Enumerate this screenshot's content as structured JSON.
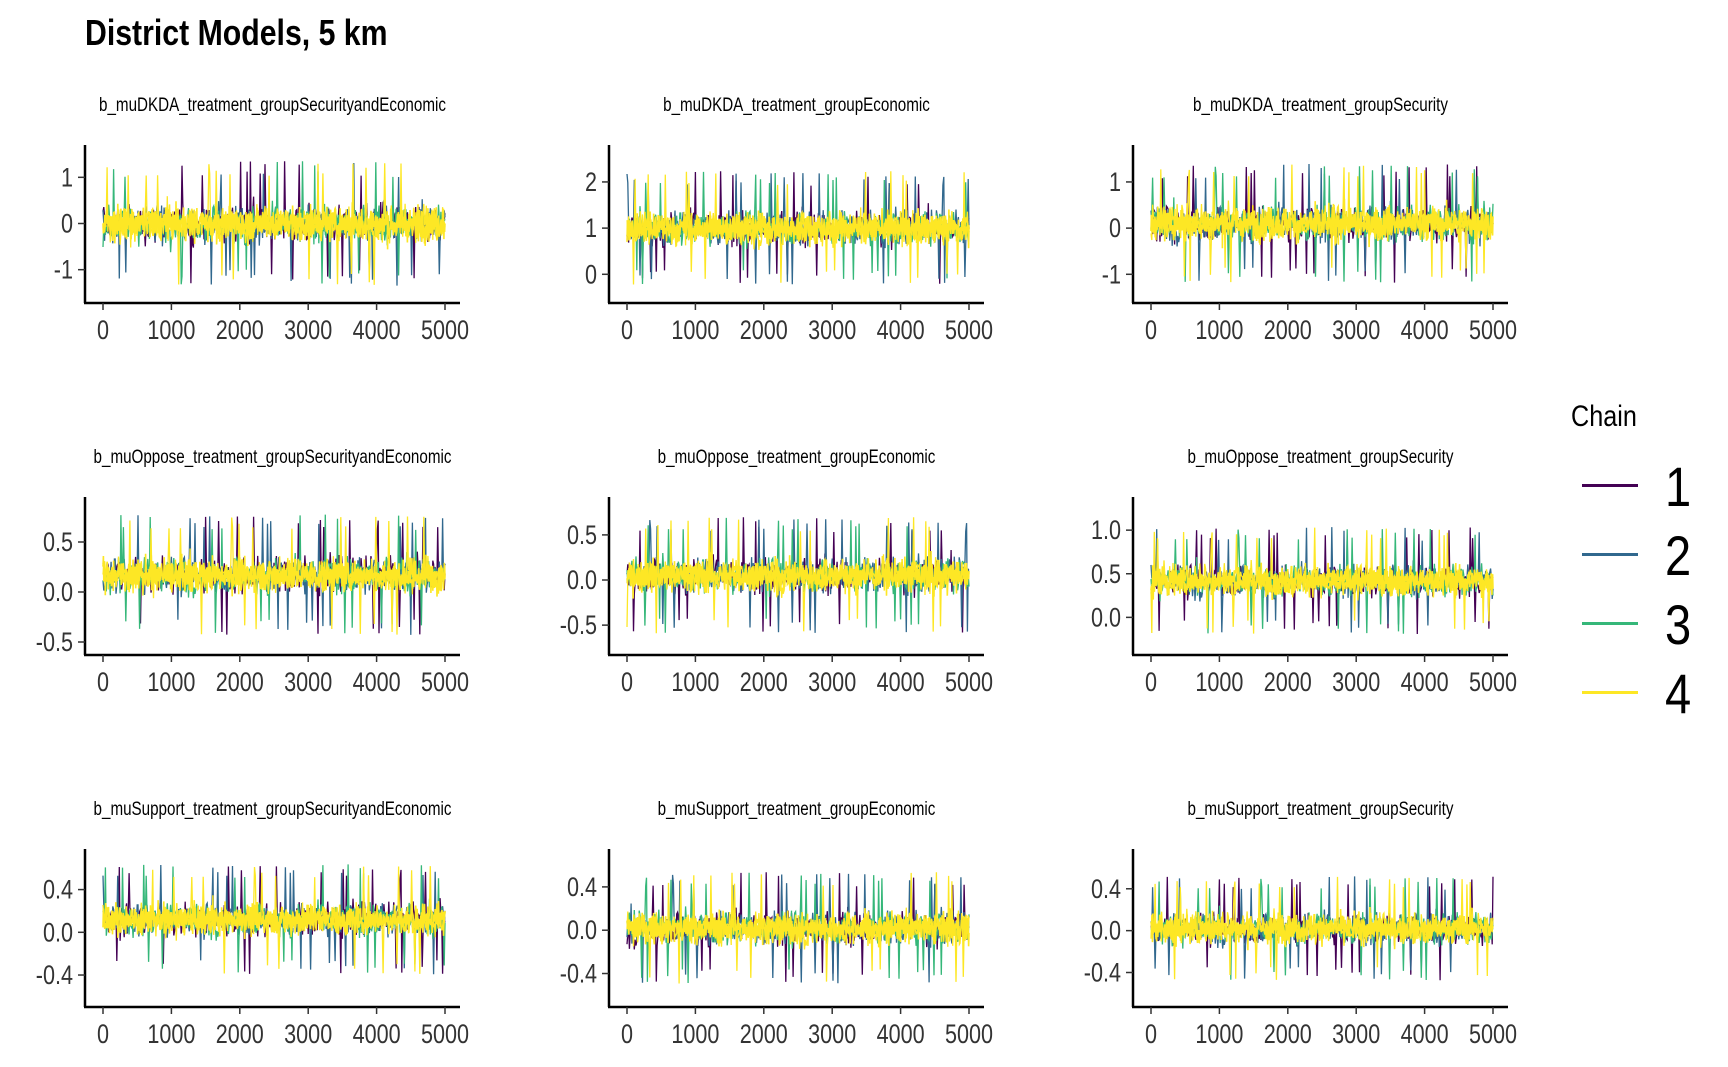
{
  "title": "District Models, 5 km",
  "legend": {
    "title": "Chain",
    "entries": [
      {
        "label": "1",
        "color": "#440154"
      },
      {
        "label": "2",
        "color": "#31688e"
      },
      {
        "label": "3",
        "color": "#35b779"
      },
      {
        "label": "4",
        "color": "#fde725"
      }
    ]
  },
  "chart_data": [
    {
      "type": "line",
      "title": "b_muDKDA_treatment_groupSecurityandEconomic",
      "xlim": [
        0,
        5000
      ],
      "xticks": [
        0,
        1000,
        2000,
        3000,
        4000,
        5000
      ],
      "ylim": [
        -1.7,
        1.7
      ],
      "yticks": [
        -1,
        0,
        1
      ],
      "ytick_labels": [
        "-1",
        "0",
        "1"
      ],
      "center": 0.0,
      "band": [
        -1.15,
        1.15
      ],
      "spike_max": 1.55,
      "spike_min": -1.65,
      "series": [
        {
          "name": "1",
          "color": "#440154"
        },
        {
          "name": "2",
          "color": "#31688e"
        },
        {
          "name": "3",
          "color": "#35b779"
        },
        {
          "name": "4",
          "color": "#fde725"
        }
      ]
    },
    {
      "type": "line",
      "title": "b_muDKDA_treatment_groupEconomic",
      "xlim": [
        0,
        5000
      ],
      "xticks": [
        0,
        1000,
        2000,
        3000,
        4000,
        5000
      ],
      "ylim": [
        -0.6,
        2.8
      ],
      "yticks": [
        0,
        1,
        2
      ],
      "ytick_labels": [
        "0",
        "1",
        "2"
      ],
      "center": 1.0,
      "band": [
        -0.05,
        2.05
      ],
      "spike_max": 2.6,
      "spike_min": -0.55,
      "series": [
        {
          "name": "1",
          "color": "#440154"
        },
        {
          "name": "2",
          "color": "#31688e"
        },
        {
          "name": "3",
          "color": "#35b779"
        },
        {
          "name": "4",
          "color": "#fde725"
        }
      ]
    },
    {
      "type": "line",
      "title": "b_muDKDA_treatment_groupSecurity",
      "xlim": [
        0,
        5000
      ],
      "xticks": [
        0,
        1000,
        2000,
        3000,
        4000,
        5000
      ],
      "ylim": [
        -1.6,
        1.8
      ],
      "yticks": [
        -1,
        0,
        1
      ],
      "ytick_labels": [
        "-1",
        "0",
        "1"
      ],
      "center": 0.1,
      "band": [
        -1.0,
        1.2
      ],
      "spike_max": 1.75,
      "spike_min": -1.45,
      "series": [
        {
          "name": "1",
          "color": "#440154"
        },
        {
          "name": "2",
          "color": "#31688e"
        },
        {
          "name": "3",
          "color": "#35b779"
        },
        {
          "name": "4",
          "color": "#fde725"
        }
      ]
    },
    {
      "type": "line",
      "title": "b_muOppose_treatment_groupSecurityandEconomic",
      "xlim": [
        0,
        5000
      ],
      "xticks": [
        0,
        1000,
        2000,
        3000,
        4000,
        5000
      ],
      "ylim": [
        -0.62,
        0.95
      ],
      "yticks": [
        -0.5,
        0.0,
        0.5
      ],
      "ytick_labels": [
        "-0.5",
        "0.0",
        "0.5"
      ],
      "center": 0.17,
      "band": [
        -0.35,
        0.68
      ],
      "spike_max": 0.88,
      "spike_min": -0.55,
      "series": [
        {
          "name": "1",
          "color": "#440154"
        },
        {
          "name": "2",
          "color": "#31688e"
        },
        {
          "name": "3",
          "color": "#35b779"
        },
        {
          "name": "4",
          "color": "#fde725"
        }
      ]
    },
    {
      "type": "line",
      "title": "b_muOppose_treatment_groupEconomic",
      "xlim": [
        0,
        5000
      ],
      "xticks": [
        0,
        1000,
        2000,
        3000,
        4000,
        5000
      ],
      "ylim": [
        -0.82,
        0.92
      ],
      "yticks": [
        -0.5,
        0.0,
        0.5
      ],
      "ytick_labels": [
        "-0.5",
        "0.0",
        "0.5"
      ],
      "center": 0.05,
      "band": [
        -0.5,
        0.6
      ],
      "spike_max": 0.85,
      "spike_min": -0.75,
      "series": [
        {
          "name": "1",
          "color": "#440154"
        },
        {
          "name": "2",
          "color": "#31688e"
        },
        {
          "name": "3",
          "color": "#35b779"
        },
        {
          "name": "4",
          "color": "#fde725"
        }
      ]
    },
    {
      "type": "line",
      "title": "b_muOppose_treatment_groupSecurity",
      "xlim": [
        0,
        5000
      ],
      "xticks": [
        0,
        1000,
        2000,
        3000,
        4000,
        5000
      ],
      "ylim": [
        -0.42,
        1.38
      ],
      "yticks": [
        0.0,
        0.5,
        1.0
      ],
      "ytick_labels": [
        "0.0",
        "0.5",
        "1.0"
      ],
      "center": 0.42,
      "band": [
        -0.1,
        0.95
      ],
      "spike_max": 1.3,
      "spike_min": -0.38,
      "series": [
        {
          "name": "1",
          "color": "#440154"
        },
        {
          "name": "2",
          "color": "#31688e"
        },
        {
          "name": "3",
          "color": "#35b779"
        },
        {
          "name": "4",
          "color": "#fde725"
        }
      ]
    },
    {
      "type": "line",
      "title": "b_muSupport_treatment_groupSecurityandEconomic",
      "xlim": [
        0,
        5000
      ],
      "xticks": [
        0,
        1000,
        2000,
        3000,
        4000,
        5000
      ],
      "ylim": [
        -0.69,
        0.78
      ],
      "yticks": [
        -0.4,
        0.0,
        0.4
      ],
      "ytick_labels": [
        "-0.4",
        "0.0",
        "0.4"
      ],
      "center": 0.12,
      "band": [
        -0.3,
        0.58
      ],
      "spike_max": 0.72,
      "spike_min": -0.6,
      "series": [
        {
          "name": "1",
          "color": "#440154"
        },
        {
          "name": "2",
          "color": "#31688e"
        },
        {
          "name": "3",
          "color": "#35b779"
        },
        {
          "name": "4",
          "color": "#fde725"
        }
      ]
    },
    {
      "type": "line",
      "title": "b_muSupport_treatment_groupEconomic",
      "xlim": [
        0,
        5000
      ],
      "xticks": [
        0,
        1000,
        2000,
        3000,
        4000,
        5000
      ],
      "ylim": [
        -0.7,
        0.75
      ],
      "yticks": [
        -0.4,
        0.0,
        0.4
      ],
      "ytick_labels": [
        "-0.4",
        "0.0",
        "0.4"
      ],
      "center": 0.02,
      "band": [
        -0.4,
        0.48
      ],
      "spike_max": 0.68,
      "spike_min": -0.63,
      "series": [
        {
          "name": "1",
          "color": "#440154"
        },
        {
          "name": "2",
          "color": "#31688e"
        },
        {
          "name": "3",
          "color": "#35b779"
        },
        {
          "name": "4",
          "color": "#fde725"
        }
      ]
    },
    {
      "type": "line",
      "title": "b_muSupport_treatment_groupSecurity",
      "xlim": [
        0,
        5000
      ],
      "xticks": [
        0,
        1000,
        2000,
        3000,
        4000,
        5000
      ],
      "ylim": [
        -0.72,
        0.78
      ],
      "yticks": [
        -0.4,
        0.0,
        0.4
      ],
      "ytick_labels": [
        "-0.4",
        "0.0",
        "0.4"
      ],
      "center": 0.02,
      "band": [
        -0.4,
        0.45
      ],
      "spike_max": 0.72,
      "spike_min": -0.65,
      "series": [
        {
          "name": "1",
          "color": "#440154"
        },
        {
          "name": "2",
          "color": "#31688e"
        },
        {
          "name": "3",
          "color": "#35b779"
        },
        {
          "name": "4",
          "color": "#fde725"
        }
      ]
    }
  ]
}
